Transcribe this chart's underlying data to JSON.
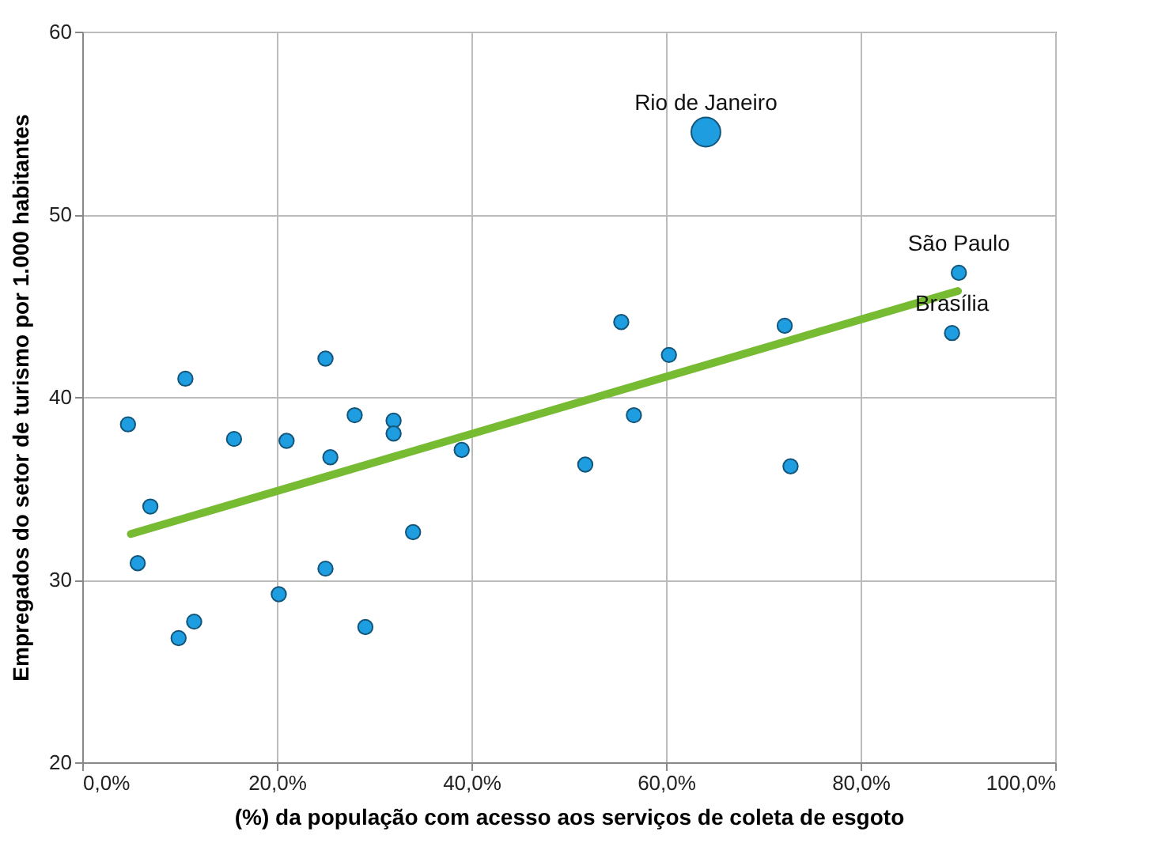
{
  "chart_data": {
    "type": "bubble",
    "xlabel": "(%) da população com acesso aos serviços de coleta de esgoto",
    "ylabel": "Empregados do setor de turismo por 1.000 habitantes",
    "xlim": [
      0,
      100
    ],
    "ylim": [
      20,
      60
    ],
    "xticks": [
      {
        "value": 0,
        "label": "0,0%"
      },
      {
        "value": 20,
        "label": "20,0%"
      },
      {
        "value": 40,
        "label": "40,0%"
      },
      {
        "value": 60,
        "label": "60,0%"
      },
      {
        "value": 80,
        "label": "80,0%"
      },
      {
        "value": 100,
        "label": "100,0%"
      }
    ],
    "yticks": [
      20,
      30,
      40,
      50,
      60
    ],
    "grid": true,
    "marker": "circle",
    "series": [
      {
        "color": "#1e9ee0",
        "x": [
          4.7,
          5.7,
          7.0,
          9.9,
          10.6,
          11.5,
          15.6,
          21.0,
          20.2,
          25.0,
          25.0,
          25.5,
          28.0,
          29.1,
          32.0,
          32.0,
          34.0,
          39.0,
          51.7,
          55.4,
          56.7,
          60.3,
          64.1,
          72.2,
          72.8,
          89.4,
          90.1
        ],
        "values": [
          38.5,
          30.9,
          34.0,
          26.8,
          41.0,
          27.7,
          37.7,
          37.6,
          29.2,
          42.1,
          30.6,
          36.7,
          39.0,
          27.4,
          38.7,
          38.0,
          32.6,
          37.1,
          36.3,
          44.1,
          39.0,
          42.3,
          54.5,
          43.9,
          36.2,
          43.5,
          46.8
        ],
        "sizes": [
          0.25,
          0.25,
          0.25,
          0.25,
          0.25,
          0.25,
          0.25,
          0.25,
          0.25,
          0.25,
          0.25,
          0.25,
          0.25,
          0.25,
          0.25,
          0.25,
          0.25,
          0.25,
          0.25,
          0.25,
          0.25,
          0.25,
          1,
          0.25,
          0.25,
          0.25,
          0.25
        ]
      },
      {
        "type": "line",
        "marker": "none",
        "color": "#77bb33",
        "x": [
          5,
          90
        ],
        "values": [
          32.5,
          45.8
        ]
      }
    ],
    "annotations": [
      {
        "text": "Rio de Janeiro",
        "x": 64.1,
        "y": 54.5
      },
      {
        "text": "São Paulo",
        "x": 90.1,
        "y": 46.8
      },
      {
        "text": "Brasília",
        "x": 89.4,
        "y": 43.5
      }
    ]
  }
}
